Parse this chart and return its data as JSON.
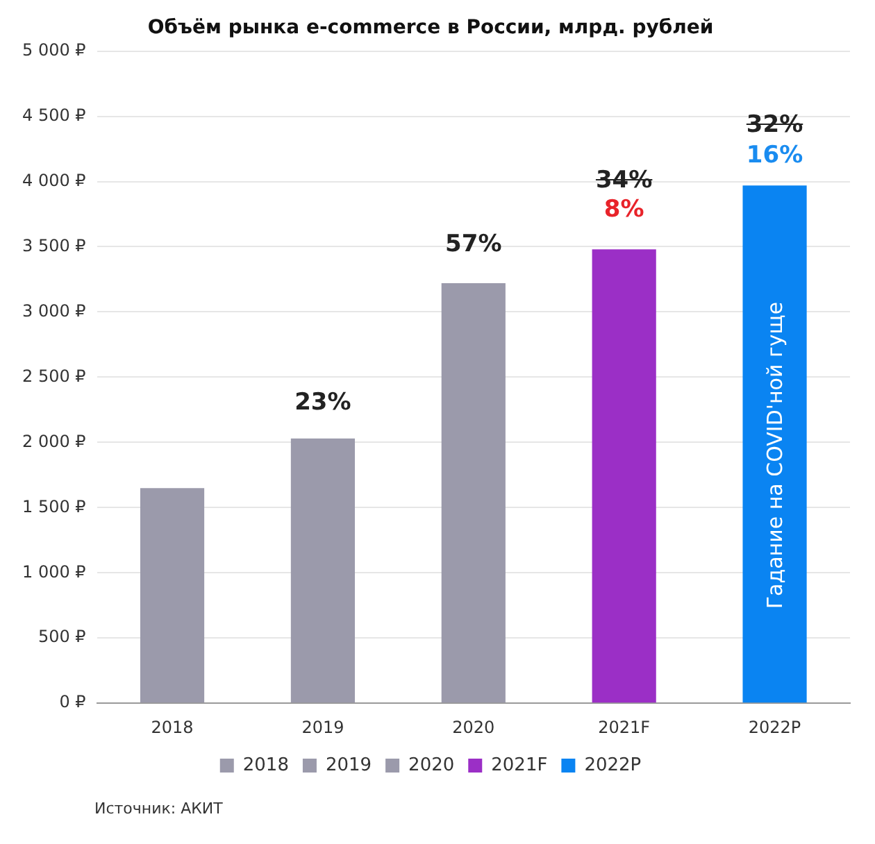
{
  "chart_data": {
    "type": "bar",
    "title": "Объём рынка e-commerce в России, млрд. рублей",
    "categories": [
      "2018",
      "2019",
      "2020",
      "2021F",
      "2022P"
    ],
    "stacked": true,
    "series": [
      {
        "name": "2018",
        "color": "#9b9aab",
        "values": [
          1650,
          null,
          null,
          null,
          null
        ]
      },
      {
        "name": "2019",
        "color": "#9b9aab",
        "values": [
          null,
          2030,
          null,
          null,
          null
        ]
      },
      {
        "name": "2020",
        "color": "#9b9aab",
        "values": [
          null,
          null,
          3220,
          null,
          null
        ]
      },
      {
        "name": "2021F",
        "color": "#9b2fc6",
        "values": [
          null,
          null,
          null,
          3480,
          null
        ]
      },
      {
        "name": "2022P",
        "color": "#0a84f2",
        "values": [
          null,
          null,
          null,
          null,
          3970
        ]
      }
    ],
    "ylim": [
      0,
      5000
    ],
    "yticks": [
      {
        "value": 0,
        "label": "0 ₽"
      },
      {
        "value": 500,
        "label": "500 ₽"
      },
      {
        "value": 1000,
        "label": "1 000 ₽"
      },
      {
        "value": 1500,
        "label": "1 500 ₽"
      },
      {
        "value": 2000,
        "label": "2 000 ₽"
      },
      {
        "value": 2500,
        "label": "2 500 ₽"
      },
      {
        "value": 3000,
        "label": "3 000 ₽"
      },
      {
        "value": 3500,
        "label": "3 500 ₽"
      },
      {
        "value": 4000,
        "label": "4 000 ₽"
      },
      {
        "value": 4500,
        "label": "4 500 ₽"
      },
      {
        "value": 5000,
        "label": "5 000 ₽"
      }
    ],
    "grid": "y",
    "legend": "bottom",
    "annotations": [
      "23%",
      "57%",
      "34%",
      "8%",
      "32%",
      "16%",
      "Гадание на COVID'ной гуще",
      "Источник: АКИТ"
    ]
  }
}
